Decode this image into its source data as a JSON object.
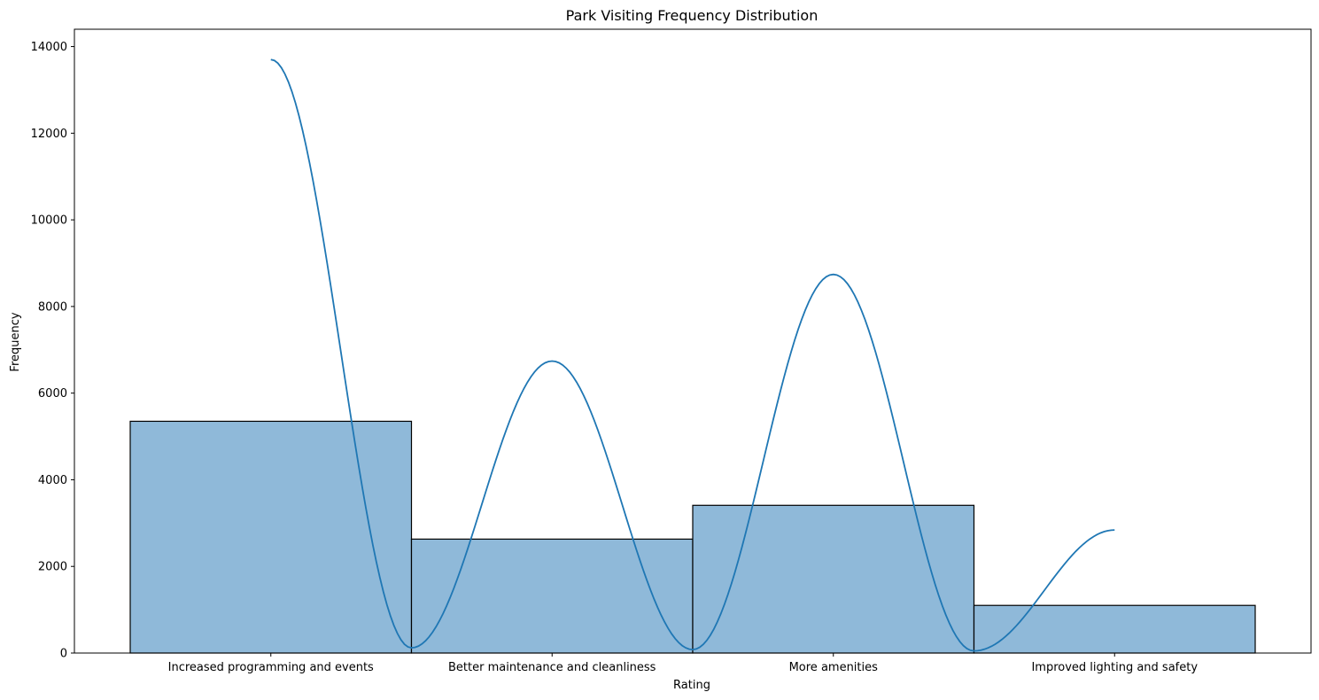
{
  "chart_data": {
    "type": "bar",
    "title": "Park Visiting Frequency Distribution",
    "xlabel": "Rating",
    "ylabel": "Frequency",
    "categories": [
      "Increased programming and events",
      "Better maintenance and cleanliness",
      "More amenities",
      "Improved lighting and safety"
    ],
    "values": [
      5350,
      2630,
      3410,
      1100
    ],
    "ylim": [
      0,
      14400
    ],
    "yticks": [
      0,
      2000,
      4000,
      6000,
      8000,
      10000,
      12000,
      14000
    ],
    "grid": false,
    "kde_curve": {
      "x": [
        0,
        1,
        2,
        3
      ],
      "peaks": [
        13700,
        6740,
        8740,
        2840
      ],
      "troughs": [
        120,
        80,
        50
      ]
    },
    "colors": {
      "bar_fill": "#8fb9d9",
      "bar_edge": "#000000",
      "curve": "#1f77b4"
    }
  }
}
